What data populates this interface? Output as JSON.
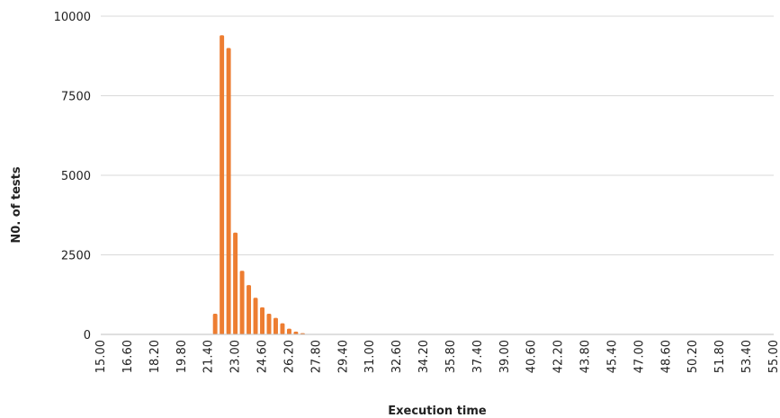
{
  "chart_data": {
    "type": "bar",
    "title": "",
    "xlabel": "Execution time",
    "ylabel": "N0. of tests",
    "ylim": [
      0,
      10000
    ],
    "y_ticks": [
      "0",
      "2500",
      "5000",
      "7500",
      "10000"
    ],
    "grid": "horizontal",
    "legend": "none",
    "bar_color": "#ed7d31",
    "x_tick_labels": [
      "15.00",
      "16.60",
      "18.20",
      "19.80",
      "21.40",
      "23.00",
      "24.60",
      "26.20",
      "27.80",
      "29.40",
      "31.00",
      "32.60",
      "34.20",
      "35.80",
      "37.40",
      "39.00",
      "40.60",
      "42.20",
      "43.80",
      "45.40",
      "47.00",
      "48.60",
      "50.20",
      "51.80",
      "53.40",
      "55.00"
    ],
    "x": [
      15.0,
      15.4,
      15.8,
      16.2,
      16.6,
      17.0,
      17.4,
      17.8,
      18.2,
      18.6,
      19.0,
      19.4,
      19.8,
      20.2,
      20.6,
      21.0,
      21.4,
      21.8,
      22.2,
      22.6,
      23.0,
      23.4,
      23.8,
      24.2,
      24.6,
      25.0,
      25.4,
      25.8,
      26.2,
      26.6,
      27.0,
      27.4,
      27.8,
      28.2,
      28.6,
      29.0,
      29.4,
      29.8,
      30.2,
      30.6,
      31.0,
      31.4,
      31.8,
      32.2,
      32.6,
      33.0,
      33.4,
      33.8,
      34.2,
      34.6,
      35.0,
      35.4,
      35.8,
      36.2,
      36.6,
      37.0,
      37.4,
      37.8,
      38.2,
      38.6,
      39.0,
      39.4,
      39.8,
      40.2,
      40.6,
      41.0,
      41.4,
      41.8,
      42.2,
      42.6,
      43.0,
      43.4,
      43.8,
      44.2,
      44.6,
      45.0,
      45.4,
      45.8,
      46.2,
      46.6,
      47.0,
      47.4,
      47.8,
      48.2,
      48.6,
      49.0,
      49.4,
      49.8,
      50.2,
      50.6,
      51.0,
      51.4,
      51.8,
      52.2,
      52.6,
      53.0,
      53.4,
      53.8,
      54.2,
      54.6,
      55.0
    ],
    "values": [
      0,
      0,
      0,
      0,
      0,
      0,
      0,
      0,
      0,
      0,
      0,
      0,
      0,
      0,
      0,
      0,
      0,
      650,
      9400,
      9000,
      3200,
      2000,
      1550,
      1150,
      850,
      650,
      520,
      350,
      180,
      90,
      40,
      10,
      0,
      0,
      0,
      0,
      0,
      0,
      0,
      0,
      0,
      0,
      0,
      0,
      0,
      0,
      0,
      0,
      0,
      0,
      0,
      0,
      0,
      0,
      0,
      0,
      0,
      0,
      0,
      0,
      0,
      0,
      0,
      0,
      0,
      0,
      0,
      0,
      0,
      0,
      0,
      0,
      0,
      0,
      0,
      0,
      0,
      0,
      0,
      0,
      0,
      0,
      0,
      0,
      0,
      0,
      0,
      0,
      0,
      0,
      0,
      0,
      0,
      0,
      0,
      0,
      0,
      0,
      0,
      0,
      0
    ]
  }
}
